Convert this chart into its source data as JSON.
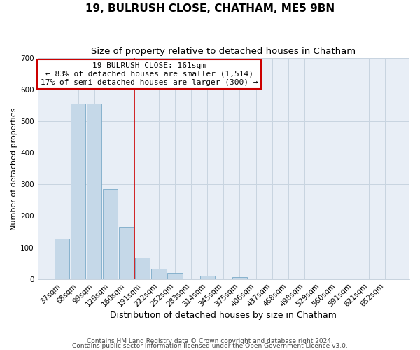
{
  "title": "19, BULRUSH CLOSE, CHATHAM, ME5 9BN",
  "subtitle": "Size of property relative to detached houses in Chatham",
  "xlabel": "Distribution of detached houses by size in Chatham",
  "ylabel": "Number of detached properties",
  "bar_labels": [
    "37sqm",
    "68sqm",
    "99sqm",
    "129sqm",
    "160sqm",
    "191sqm",
    "222sqm",
    "252sqm",
    "283sqm",
    "314sqm",
    "345sqm",
    "375sqm",
    "406sqm",
    "437sqm",
    "468sqm",
    "498sqm",
    "529sqm",
    "560sqm",
    "591sqm",
    "621sqm",
    "652sqm"
  ],
  "bar_values": [
    128,
    555,
    555,
    285,
    165,
    68,
    33,
    19,
    0,
    11,
    0,
    5,
    0,
    0,
    0,
    0,
    0,
    0,
    0,
    0,
    0
  ],
  "bar_color": "#c5d8e8",
  "bar_edge_color": "#7baac8",
  "marker_line_color": "#cc0000",
  "marker_bar_index": 4,
  "ylim": [
    0,
    700
  ],
  "yticks": [
    0,
    100,
    200,
    300,
    400,
    500,
    600,
    700
  ],
  "annotation_title": "19 BULRUSH CLOSE: 161sqm",
  "annotation_line1": "← 83% of detached houses are smaller (1,514)",
  "annotation_line2": "17% of semi-detached houses are larger (300) →",
  "annotation_box_color": "#ffffff",
  "annotation_box_edge_color": "#cc0000",
  "footer1": "Contains HM Land Registry data © Crown copyright and database right 2024.",
  "footer2": "Contains public sector information licensed under the Open Government Licence v3.0.",
  "bg_color": "#ffffff",
  "plot_bg_color": "#e8eef6",
  "grid_color": "#c8d4e0",
  "title_fontsize": 11,
  "subtitle_fontsize": 9.5,
  "xlabel_fontsize": 9,
  "ylabel_fontsize": 8,
  "tick_fontsize": 7.5,
  "annotation_fontsize": 8,
  "footer_fontsize": 6.5
}
